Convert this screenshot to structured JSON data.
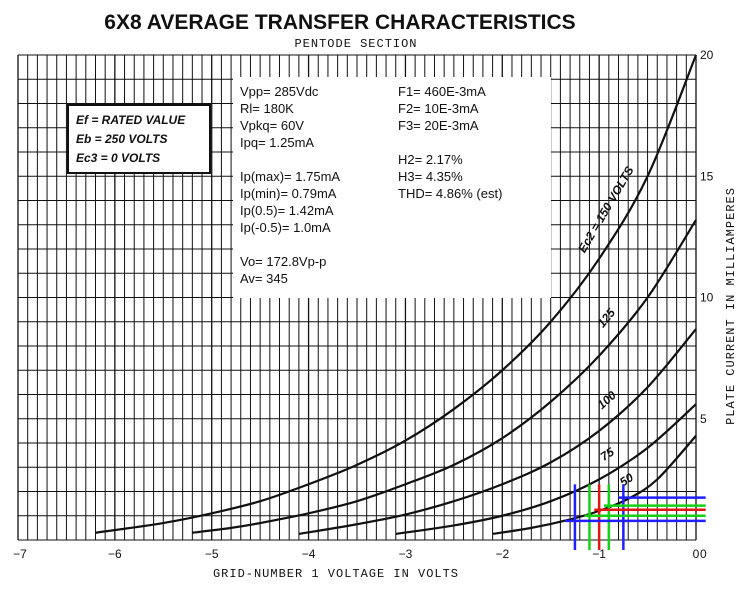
{
  "chart_data": {
    "type": "line",
    "title": "6X8 AVERAGE TRANSFER CHARACTERISTICS",
    "subtitle": "PENTODE SECTION",
    "xlabel": "GRID-NUMBER 1 VOLTAGE IN VOLTS",
    "ylabel": "PLATE CURRENT IN MILLIAMPERES",
    "xlim": [
      -7,
      0
    ],
    "ylim": [
      0,
      20
    ],
    "x_ticks": [
      -7,
      -6,
      -5,
      -4,
      -3,
      -2,
      -1,
      0
    ],
    "x_tick_labels": [
      "−7",
      "−6",
      "−5",
      "−4",
      "−3",
      "−2",
      "−1",
      "0"
    ],
    "y_ticks": [
      5,
      10,
      15,
      20
    ],
    "y_tick_labels": [
      "5",
      "10",
      "15",
      "20"
    ],
    "grid": true,
    "curve_label_prefix": "Ec2 = ",
    "curve_label_suffix": " VOLTS",
    "series": [
      {
        "name": "150",
        "label": "Ec2 = 150 VOLTS",
        "x": [
          -6.2,
          -5.5,
          -5.0,
          -4.5,
          -4.0,
          -3.5,
          -3.0,
          -2.5,
          -2.0,
          -1.5,
          -1.0,
          -0.5,
          0
        ],
        "y": [
          0.3,
          0.7,
          1.1,
          1.6,
          2.3,
          3.1,
          4.1,
          5.4,
          7.0,
          9.0,
          11.6,
          15.0,
          20.0
        ]
      },
      {
        "name": "125",
        "label": "125",
        "x": [
          -5.2,
          -4.8,
          -4.5,
          -4.0,
          -3.5,
          -3.0,
          -2.5,
          -2.0,
          -1.5,
          -1.0,
          -0.5,
          0
        ],
        "y": [
          0.3,
          0.5,
          0.7,
          1.1,
          1.6,
          2.3,
          3.1,
          4.2,
          5.7,
          7.6,
          10.0,
          13.2
        ]
      },
      {
        "name": "100",
        "label": "100",
        "x": [
          -4.1,
          -3.5,
          -3.0,
          -2.5,
          -2.0,
          -1.5,
          -1.0,
          -0.5,
          0
        ],
        "y": [
          0.25,
          0.65,
          1.05,
          1.6,
          2.3,
          3.2,
          4.5,
          6.3,
          8.7
        ]
      },
      {
        "name": "75",
        "label": "75",
        "x": [
          -3.1,
          -2.5,
          -2.0,
          -1.5,
          -1.0,
          -0.5,
          0
        ],
        "y": [
          0.25,
          0.6,
          1.0,
          1.6,
          2.5,
          3.8,
          5.6
        ]
      },
      {
        "name": "50",
        "label": "50",
        "x": [
          -2.1,
          -1.7,
          -1.3,
          -1.0,
          -0.7,
          -0.4,
          0
        ],
        "y": [
          0.25,
          0.5,
          0.85,
          1.2,
          1.7,
          2.5,
          4.3
        ]
      }
    ],
    "overlay_lines": [
      {
        "color": "#1f1fff",
        "orientation": "vertical",
        "value": -1.25
      },
      {
        "color": "#1f1fff",
        "orientation": "vertical",
        "value": -0.75
      },
      {
        "color": "#e31414",
        "orientation": "vertical",
        "value": -1.0
      },
      {
        "color": "#16d016",
        "orientation": "vertical",
        "value": -1.1
      },
      {
        "color": "#16d016",
        "orientation": "vertical",
        "value": -0.9
      },
      {
        "color": "#1f1fff",
        "orientation": "horizontal",
        "value": 0.79,
        "from": -1.35,
        "to": 0.1
      },
      {
        "color": "#1f1fff",
        "orientation": "horizontal",
        "value": 1.75,
        "from": -0.8,
        "to": 0.1
      },
      {
        "color": "#e31414",
        "orientation": "horizontal",
        "value": 1.25,
        "from": -1.05,
        "to": 0.1
      },
      {
        "color": "#16d016",
        "orientation": "horizontal",
        "value": 1.0,
        "from": -1.15,
        "to": 0.1
      },
      {
        "color": "#16d016",
        "orientation": "horizontal",
        "value": 1.42,
        "from": -0.95,
        "to": 0.1
      }
    ]
  },
  "conditions": {
    "line1": "Ef = RATED VALUE",
    "line2": "Eb = 250 VOLTS",
    "line3": "Ec3 = 0 VOLTS"
  },
  "notes": {
    "left": [
      "Vpp=  285Vdc",
      "Rl=     180K",
      "Vpkq= 60V",
      "Ipq=    1.25mA",
      "",
      "Ip(max)= 1.75mA",
      "Ip(min)=  0.79mA",
      "Ip(0.5)=   1.42mA",
      "Ip(-0.5)=  1.0mA",
      "",
      "Vo=  172.8Vp-p",
      "Av= 345"
    ],
    "right": [
      "F1= 460E-3mA",
      "F2= 10E-3mA",
      "F3= 20E-3mA",
      "",
      "H2=     2.17%",
      "H3=     4.35%",
      "THD= 4.86% (est)"
    ]
  }
}
